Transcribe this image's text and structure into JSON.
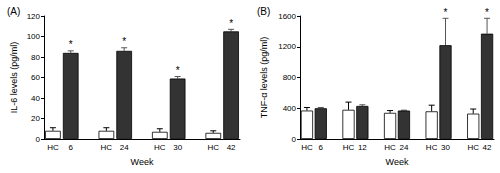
{
  "chart_data": [
    {
      "type": "bar",
      "title": "(A)",
      "y_label": "IL-6 levels (pg/ml)",
      "x_label": "Week",
      "categories": [
        "HC",
        "6",
        null,
        "HC",
        "24",
        null,
        "HC",
        "30",
        null,
        "HC",
        "42"
      ],
      "values": [
        8,
        84,
        null,
        8,
        86,
        null,
        7,
        59,
        null,
        6,
        105
      ],
      "errors": [
        3,
        2,
        null,
        3,
        3,
        null,
        3,
        2,
        null,
        2,
        2
      ],
      "colors": [
        "#ffffff",
        "#333333",
        null,
        "#ffffff",
        "#333333",
        null,
        "#ffffff",
        "#333333",
        null,
        "#ffffff",
        "#333333"
      ],
      "annotations": [
        null,
        "*",
        null,
        null,
        "*",
        null,
        null,
        "*",
        null,
        null,
        "*"
      ],
      "ylim": [
        0,
        120
      ],
      "yticks": [
        0,
        20,
        40,
        60,
        80,
        100,
        120
      ],
      "grid": false
    },
    {
      "type": "bar",
      "title": "(B)",
      "y_label": "TNF-α levels (pg/ml)",
      "x_label": "Week",
      "categories": [
        "HC",
        "6",
        null,
        "HC",
        "12",
        null,
        "HC",
        "24",
        null,
        "HC",
        "30",
        null,
        "HC",
        "42"
      ],
      "values": [
        370,
        400,
        null,
        380,
        430,
        null,
        340,
        370,
        null,
        360,
        1220,
        null,
        330,
        1370
      ],
      "errors": [
        40,
        10,
        null,
        100,
        15,
        null,
        30,
        5,
        null,
        80,
        350,
        null,
        60,
        200
      ],
      "colors": [
        "#ffffff",
        "#333333",
        null,
        "#ffffff",
        "#333333",
        null,
        "#ffffff",
        "#333333",
        null,
        "#ffffff",
        "#333333",
        null,
        "#ffffff",
        "#333333"
      ],
      "annotations": [
        null,
        null,
        null,
        null,
        null,
        null,
        null,
        null,
        null,
        null,
        "*",
        null,
        null,
        "*"
      ],
      "ylim": [
        0,
        1600
      ],
      "yticks": [
        0,
        400,
        800,
        1200,
        1600
      ],
      "grid": false
    }
  ]
}
